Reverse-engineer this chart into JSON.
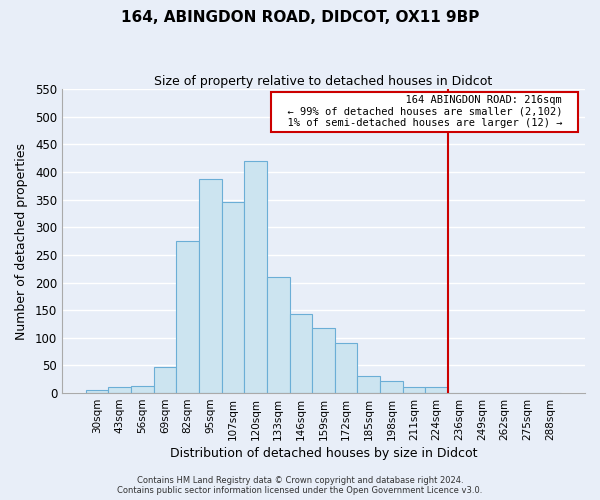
{
  "title": "164, ABINGDON ROAD, DIDCOT, OX11 9BP",
  "subtitle": "Size of property relative to detached houses in Didcot",
  "xlabel": "Distribution of detached houses by size in Didcot",
  "ylabel": "Number of detached properties",
  "bar_labels": [
    "30sqm",
    "43sqm",
    "56sqm",
    "69sqm",
    "82sqm",
    "95sqm",
    "107sqm",
    "120sqm",
    "133sqm",
    "146sqm",
    "159sqm",
    "172sqm",
    "185sqm",
    "198sqm",
    "211sqm",
    "224sqm",
    "236sqm",
    "249sqm",
    "262sqm",
    "275sqm",
    "288sqm"
  ],
  "bar_heights": [
    5,
    11,
    13,
    48,
    275,
    387,
    345,
    420,
    210,
    144,
    117,
    91,
    31,
    22,
    11,
    11,
    0,
    0,
    0,
    0,
    0
  ],
  "bar_color": "#cce4f0",
  "bar_edge_color": "#6baed6",
  "ylim": [
    0,
    550
  ],
  "yticks": [
    0,
    50,
    100,
    150,
    200,
    250,
    300,
    350,
    400,
    450,
    500,
    550
  ],
  "property_line_x": 15.5,
  "property_line_color": "#cc0000",
  "annotation_title": "164 ABINGDON ROAD: 216sqm",
  "annotation_line1": "← 99% of detached houses are smaller (2,102)",
  "annotation_line2": "1% of semi-detached houses are larger (12) →",
  "annotation_box_color": "#ffffff",
  "annotation_box_edge": "#cc0000",
  "footer1": "Contains HM Land Registry data © Crown copyright and database right 2024.",
  "footer2": "Contains public sector information licensed under the Open Government Licence v3.0.",
  "bg_color": "#e8eef8",
  "grid_color": "#ffffff"
}
